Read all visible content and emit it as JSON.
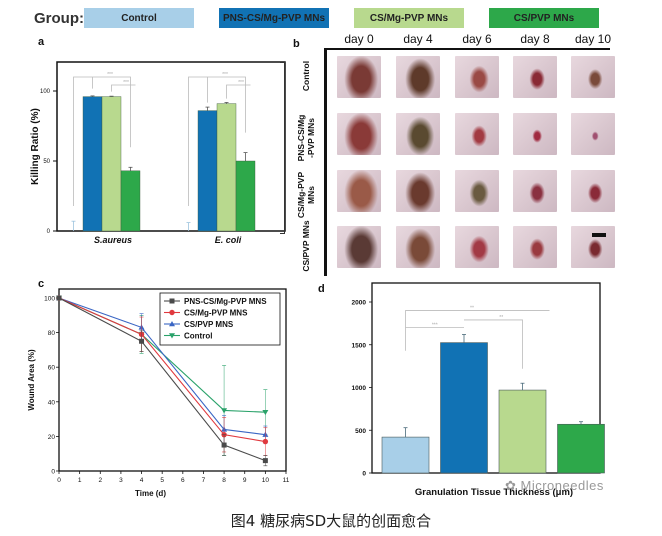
{
  "legend": {
    "label": "Group:",
    "groups": [
      {
        "name": "Control",
        "color": "#a8cfe8"
      },
      {
        "name": "PNS-CS/Mg-PVP MNs",
        "color": "#1172b4"
      },
      {
        "name": "CS/Mg-PVP MNs",
        "color": "#b8d98e"
      },
      {
        "name": "CS/PVP MNs",
        "color": "#2da84a"
      }
    ]
  },
  "panels": {
    "a": "a",
    "b": "b",
    "c": "c",
    "d": "d"
  },
  "photo_panel": {
    "days": [
      "day 0",
      "day 4",
      "day 6",
      "day 8",
      "day 10"
    ],
    "rows": [
      "Control",
      "PNS-CS/Mg\n-PVP MNs",
      "CS/Mg-PVP\nMNs",
      "CS/PVP MNs"
    ],
    "scale_bar_visible": true
  },
  "chart_data": [
    {
      "id": "a",
      "type": "bar",
      "title": "",
      "xlabel": "",
      "ylabel": "Killing Ratio (%)",
      "ylim": [
        0,
        120
      ],
      "yticks": [
        0,
        50,
        100
      ],
      "categories": [
        "S.aureus",
        "E. coli"
      ],
      "series": [
        {
          "name": "Control",
          "values": [
            0,
            0
          ],
          "errors": [
            7,
            6
          ]
        },
        {
          "name": "PNS-CS/Mg-PVP MNs",
          "values": [
            96,
            86
          ],
          "errors": [
            0.5,
            2.5
          ]
        },
        {
          "name": "CS/Mg-PVP MNs",
          "values": [
            96,
            91
          ],
          "errors": [
            0.3,
            0.8
          ]
        },
        {
          "name": "CS/PVP MNs",
          "values": [
            43,
            50
          ],
          "errors": [
            2.5,
            6
          ]
        }
      ],
      "significance": [
        {
          "category": "S.aureus",
          "from": "Control",
          "to": "CS/PVP MNs",
          "label": "***"
        },
        {
          "category": "S.aureus",
          "from": "CS/Mg-PVP MNs",
          "to": "CS/PVP MNs",
          "label": "***"
        },
        {
          "category": "E. coli",
          "from": "Control",
          "to": "CS/PVP MNs",
          "label": "***"
        },
        {
          "category": "E. coli",
          "from": "CS/Mg-PVP MNs",
          "to": "CS/PVP MNs",
          "label": "***"
        }
      ],
      "grid": false
    },
    {
      "id": "c",
      "type": "line",
      "title": "",
      "xlabel": "Time (d)",
      "ylabel": "Wound Area (%)",
      "xlim": [
        0,
        11
      ],
      "ylim": [
        0,
        105
      ],
      "xticks": [
        0,
        1,
        2,
        3,
        4,
        5,
        6,
        7,
        8,
        9,
        10,
        11
      ],
      "yticks": [
        0,
        20,
        40,
        60,
        80,
        100
      ],
      "x": [
        0,
        4,
        8,
        10
      ],
      "series": [
        {
          "name": "PNS-CS/Mg-PVP MNS",
          "color": "#4a4a4a",
          "marker": "square",
          "values": [
            100,
            75,
            15,
            6
          ],
          "errors": [
            0,
            6,
            6,
            3
          ]
        },
        {
          "name": "CS/Mg-PVP MNS",
          "color": "#e0393e",
          "marker": "circle",
          "values": [
            100,
            79,
            21,
            17
          ],
          "errors": [
            0,
            10,
            10,
            8
          ]
        },
        {
          "name": "CS/PVP MNS",
          "color": "#3a66c4",
          "marker": "triangle-up",
          "values": [
            100,
            83,
            24,
            21
          ],
          "errors": [
            0,
            8,
            8,
            5
          ]
        },
        {
          "name": "Control",
          "color": "#2aa26a",
          "marker": "triangle-down",
          "values": [
            100,
            79,
            35,
            34
          ],
          "errors": [
            0,
            11,
            26,
            13
          ]
        }
      ],
      "legend_position": "top-right",
      "grid": false
    },
    {
      "id": "d",
      "type": "bar",
      "title": "",
      "xlabel": "Granulation Tissue Thickness (μm)",
      "ylabel": "",
      "ylim": [
        0,
        2100
      ],
      "yticks": [
        0,
        500,
        1000,
        1500,
        2000
      ],
      "categories": [
        "Control",
        "PNS-CS/Mg-PVP MNs",
        "CS/Mg-PVP MNs",
        "CS/PVP MNs"
      ],
      "values": [
        420,
        1525,
        970,
        570
      ],
      "errors": [
        110,
        95,
        80,
        30
      ],
      "colors": [
        "#a8cfe8",
        "#1172b4",
        "#b8d98e",
        "#2da84a"
      ],
      "significance": [
        {
          "from": "Control",
          "to": "PNS-CS/Mg-PVP MNs",
          "label": "***"
        },
        {
          "from": "Control",
          "to": "CS/Mg-PVP MNs",
          "label": "**"
        },
        {
          "from": "PNS-CS/Mg-PVP MNs",
          "to": "CS/Mg-PVP MNs",
          "label": "**"
        }
      ],
      "grid": false
    }
  ],
  "watermark": "Microneedles",
  "caption": "图4 糖尿病SD大鼠的创面愈合"
}
